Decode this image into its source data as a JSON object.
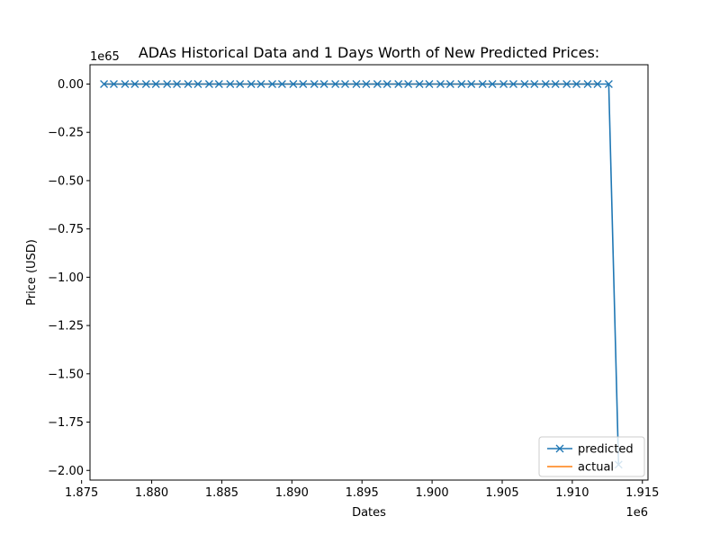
{
  "chart_data": {
    "type": "line",
    "title": "ADAs Historical Data and 1 Days Worth of New Predicted Prices:",
    "xlabel": "Dates",
    "ylabel": "Price (USD)",
    "x_offset_label": "1e6",
    "y_offset_label": "1e65",
    "xlim": [
      1.8756,
      1.9154
    ],
    "ylim": [
      -2.05,
      0.1
    ],
    "x_ticks": [
      1.875,
      1.88,
      1.885,
      1.89,
      1.895,
      1.9,
      1.905,
      1.91,
      1.915
    ],
    "x_tick_labels": [
      "1.875",
      "1.880",
      "1.885",
      "1.890",
      "1.895",
      "1.900",
      "1.905",
      "1.910",
      "1.915"
    ],
    "y_ticks": [
      0.0,
      -0.25,
      -0.5,
      -0.75,
      -1.0,
      -1.25,
      -1.5,
      -1.75,
      -2.0
    ],
    "y_tick_labels": [
      "0.00",
      "−0.25",
      "−0.50",
      "−0.75",
      "−1.00",
      "−1.25",
      "−1.50",
      "−1.75",
      "−2.00"
    ],
    "grid": false,
    "legend_position": "lower-right",
    "series": [
      {
        "name": "predicted",
        "color": "#1f77b4",
        "marker": "x",
        "x": [
          1.8766,
          1.8773,
          1.8781,
          1.8788,
          1.8796,
          1.8803,
          1.8811,
          1.8818,
          1.8826,
          1.8833,
          1.8841,
          1.8848,
          1.8856,
          1.8863,
          1.8871,
          1.8878,
          1.8886,
          1.8893,
          1.8901,
          1.8908,
          1.8916,
          1.8923,
          1.8931,
          1.8938,
          1.8946,
          1.8953,
          1.8961,
          1.8968,
          1.8976,
          1.8983,
          1.8991,
          1.8998,
          1.9006,
          1.9013,
          1.9021,
          1.9028,
          1.9036,
          1.9043,
          1.9051,
          1.9058,
          1.9066,
          1.9073,
          1.9081,
          1.9088,
          1.9096,
          1.9103,
          1.9111,
          1.9118,
          1.9126,
          1.9133
        ],
        "y": [
          0,
          0,
          0,
          0,
          0,
          0,
          0,
          0,
          0,
          0,
          0,
          0,
          0,
          0,
          0,
          0,
          0,
          0,
          0,
          0,
          0,
          0,
          0,
          0,
          0,
          0,
          0,
          0,
          0,
          0,
          0,
          0,
          0,
          0,
          0,
          0,
          0,
          0,
          0,
          0,
          0,
          0,
          0,
          0,
          0,
          0,
          0,
          0,
          0,
          -1.97
        ]
      },
      {
        "name": "actual",
        "color": "#ff7f0e",
        "marker": "",
        "x": [
          1.8766,
          1.9118
        ],
        "y": [
          0,
          0
        ]
      }
    ]
  }
}
